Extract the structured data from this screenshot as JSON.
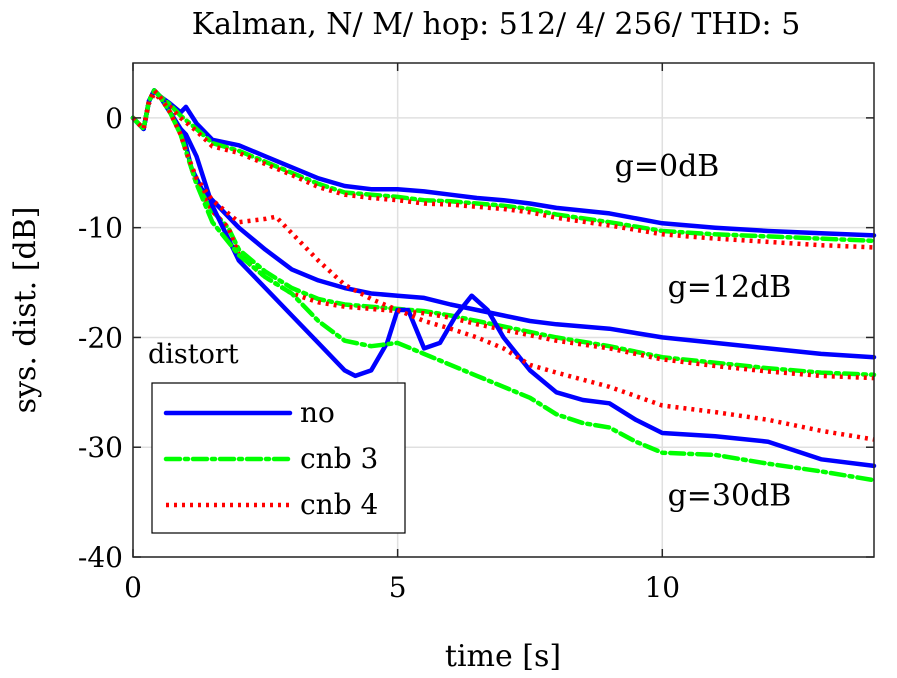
{
  "chart_data": {
    "type": "line",
    "title": "Kalman, N/ M/ hop: 512/ 4/ 256/ THD: 5",
    "xlabel": "time [s]",
    "ylabel": "sys. dist. [dB]",
    "xlim": [
      0,
      14
    ],
    "ylim": [
      -40,
      5
    ],
    "xticks": [
      0,
      5,
      10
    ],
    "yticks": [
      0,
      -10,
      -20,
      -30,
      -40
    ],
    "grid": true,
    "legend": {
      "title": "distort",
      "placement": "lower-left",
      "entries": [
        {
          "label": "no",
          "color": "#0000ff",
          "style": "solid"
        },
        {
          "label": "cnb 3",
          "color": "#00ff00",
          "style": "dashdot"
        },
        {
          "label": "cnb 4",
          "color": "#ff0000",
          "style": "dotted"
        }
      ]
    },
    "annotations": [
      {
        "text": "g=0dB",
        "x": 9.1,
        "y": -5.3
      },
      {
        "text": "g=12dB",
        "x": 10.1,
        "y": -16.3
      },
      {
        "text": "g=30dB",
        "x": 10.1,
        "y": -35.3
      }
    ],
    "series": [
      {
        "name": "no",
        "group": "g=0dB",
        "color": "#0000ff",
        "style": "solid",
        "x": [
          0,
          0.2,
          0.3,
          0.4,
          0.5,
          0.7,
          0.9,
          1.0,
          1.2,
          1.5,
          2,
          2.5,
          3,
          3.5,
          4,
          4.5,
          5,
          5.5,
          6,
          6.5,
          7,
          7.5,
          8,
          9,
          10,
          11,
          12,
          13,
          14
        ],
        "y": [
          0,
          -1,
          1.5,
          2.5,
          2,
          1.3,
          0.5,
          1,
          -0.5,
          -2,
          -2.5,
          -3.5,
          -4.5,
          -5.5,
          -6.2,
          -6.5,
          -6.5,
          -6.7,
          -7,
          -7.3,
          -7.5,
          -7.8,
          -8.2,
          -8.7,
          -9.6,
          -10,
          -10.3,
          -10.5,
          -10.7
        ]
      },
      {
        "name": "cnb 3",
        "group": "g=0dB",
        "color": "#00ff00",
        "style": "dashdot",
        "x": [
          0,
          0.2,
          0.3,
          0.4,
          0.5,
          0.7,
          0.9,
          1.2,
          1.5,
          2,
          2.5,
          3,
          3.5,
          4,
          4.5,
          5,
          5.5,
          6,
          6.5,
          7,
          7.5,
          8,
          9,
          10,
          11,
          12,
          13,
          14
        ],
        "y": [
          0,
          -1,
          1.5,
          2.5,
          2,
          1.2,
          0.2,
          -1,
          -2.3,
          -3,
          -4,
          -5,
          -6,
          -6.8,
          -7,
          -7.2,
          -7.5,
          -7.6,
          -7.8,
          -8,
          -8.3,
          -8.8,
          -9.5,
          -10.3,
          -10.6,
          -10.8,
          -11,
          -11.2
        ]
      },
      {
        "name": "cnb 4",
        "group": "g=0dB",
        "color": "#ff0000",
        "style": "dotted",
        "x": [
          0,
          0.2,
          0.3,
          0.4,
          0.5,
          0.7,
          0.9,
          1.2,
          1.5,
          2,
          2.5,
          3,
          3.5,
          4,
          4.5,
          5,
          5.5,
          6,
          6.5,
          7,
          7.5,
          8,
          9,
          10,
          11,
          12,
          13,
          14
        ],
        "y": [
          0,
          -1,
          1.3,
          2.2,
          1.8,
          1,
          0,
          -1.2,
          -2.6,
          -3.2,
          -4.2,
          -5.2,
          -6.3,
          -7,
          -7.3,
          -7.5,
          -7.8,
          -7.9,
          -8.1,
          -8.3,
          -8.6,
          -9.1,
          -9.8,
          -10.6,
          -11,
          -11.3,
          -11.6,
          -11.8
        ]
      },
      {
        "name": "no",
        "group": "g=12dB",
        "color": "#0000ff",
        "style": "solid",
        "x": [
          0,
          0.2,
          0.3,
          0.4,
          0.5,
          0.7,
          0.9,
          1.0,
          1.1,
          1.3,
          1.5,
          1.7,
          2,
          2.5,
          3,
          3.5,
          4,
          4.5,
          5,
          5.5,
          6,
          6.5,
          7,
          7.5,
          8,
          9,
          10,
          11,
          12,
          13,
          14
        ],
        "y": [
          0,
          -1,
          1.5,
          2.5,
          2,
          0.5,
          -1,
          -2.5,
          -4.5,
          -6.5,
          -7.5,
          -8.5,
          -10,
          -12,
          -13.8,
          -14.8,
          -15.5,
          -16,
          -16.2,
          -16.4,
          -17,
          -17.5,
          -18,
          -18.5,
          -18.8,
          -19.2,
          -20,
          -20.5,
          -21,
          -21.5,
          -21.8
        ]
      },
      {
        "name": "cnb 3",
        "group": "g=12dB",
        "color": "#00ff00",
        "style": "dashdot",
        "x": [
          0,
          0.2,
          0.3,
          0.4,
          0.5,
          0.7,
          0.9,
          1.0,
          1.2,
          1.5,
          1.8,
          2,
          2.5,
          3,
          3.5,
          4,
          4.5,
          5,
          5.5,
          6,
          6.5,
          7,
          7.5,
          8,
          9,
          10,
          11,
          12,
          13,
          14
        ],
        "y": [
          0,
          -1,
          1.5,
          2.5,
          2,
          0.5,
          -1.5,
          -3,
          -6,
          -8.5,
          -10,
          -12,
          -14,
          -15.5,
          -16.5,
          -17,
          -17.2,
          -17.4,
          -17.6,
          -18,
          -18.5,
          -19,
          -19.5,
          -20,
          -20.8,
          -21.8,
          -22.3,
          -22.8,
          -23.2,
          -23.4
        ]
      },
      {
        "name": "cnb 4",
        "group": "g=12dB",
        "color": "#ff0000",
        "style": "dotted",
        "x": [
          0,
          0.2,
          0.3,
          0.4,
          0.5,
          0.7,
          0.9,
          1.0,
          1.2,
          1.5,
          1.8,
          2,
          2.5,
          3,
          3.5,
          4,
          4.5,
          5,
          5.5,
          6,
          6.5,
          7,
          7.5,
          8,
          9,
          10,
          11,
          12,
          13,
          14
        ],
        "y": [
          0,
          -1,
          1.5,
          2.5,
          2,
          0.5,
          -1.5,
          -3,
          -6,
          -8.5,
          -10,
          -12.5,
          -14.5,
          -16,
          -16.8,
          -17.2,
          -17.4,
          -17.6,
          -17.8,
          -18.2,
          -18.8,
          -19.3,
          -19.8,
          -20.3,
          -21,
          -22,
          -22.6,
          -23.1,
          -23.5,
          -23.7
        ]
      },
      {
        "name": "no",
        "group": "g=30dB",
        "color": "#0000ff",
        "style": "solid",
        "x": [
          0,
          0.2,
          0.3,
          0.4,
          0.5,
          0.7,
          0.9,
          1.0,
          1.2,
          1.5,
          2,
          2.5,
          3,
          3.5,
          4,
          4.2,
          4.5,
          4.8,
          5,
          5.2,
          5.5,
          5.8,
          6.1,
          6.4,
          6.7,
          7,
          7.5,
          8,
          8.5,
          9,
          9.5,
          10,
          11,
          12,
          12.5,
          13,
          14
        ],
        "y": [
          0,
          -1,
          1.5,
          2.5,
          2,
          0.5,
          -1,
          -1.5,
          -3.5,
          -8,
          -13,
          -15.5,
          -18,
          -20.5,
          -23,
          -23.5,
          -23,
          -20.5,
          -17.5,
          -17.5,
          -21,
          -20.5,
          -18,
          -16.2,
          -17.5,
          -20,
          -23,
          -25,
          -25.7,
          -26,
          -27.5,
          -28.7,
          -29,
          -29.5,
          -30.3,
          -31.1,
          -31.7
        ]
      },
      {
        "name": "cnb 3",
        "group": "g=30dB",
        "color": "#00ff00",
        "style": "dashdot",
        "x": [
          0,
          0.2,
          0.3,
          0.4,
          0.5,
          0.7,
          0.9,
          1.0,
          1.2,
          1.5,
          2,
          2.5,
          3,
          3.5,
          4,
          4.5,
          5,
          5.5,
          6,
          6.5,
          7,
          7.5,
          8,
          8.5,
          9,
          9.5,
          10,
          11,
          12,
          13,
          14
        ],
        "y": [
          0,
          -1,
          1.5,
          2.5,
          2,
          0.5,
          -1.5,
          -3,
          -6,
          -9.5,
          -12.5,
          -14.5,
          -16,
          -18.5,
          -20.3,
          -20.8,
          -20.5,
          -21.5,
          -22.5,
          -23.5,
          -24.5,
          -25.5,
          -27,
          -27.8,
          -28.2,
          -29.5,
          -30.5,
          -30.7,
          -31.5,
          -32.2,
          -33
        ]
      },
      {
        "name": "cnb 4",
        "group": "g=30dB",
        "color": "#ff0000",
        "style": "dotted",
        "x": [
          0,
          0.2,
          0.3,
          0.4,
          0.5,
          0.7,
          0.9,
          1.0,
          1.2,
          1.5,
          2,
          2.5,
          2.7,
          3,
          3.5,
          4,
          4.5,
          5,
          5.5,
          6,
          6.5,
          7,
          7.5,
          8,
          9,
          10,
          11,
          12,
          13,
          14
        ],
        "y": [
          0,
          -1,
          1.5,
          2.5,
          2,
          0.5,
          -1.5,
          -3,
          -5.5,
          -7.5,
          -9.5,
          -9.2,
          -9,
          -10.5,
          -13,
          -15.2,
          -16.5,
          -17.5,
          -18.5,
          -19.2,
          -20,
          -21,
          -22.5,
          -23.2,
          -24.5,
          -26.2,
          -26.8,
          -27.5,
          -28.5,
          -29.3
        ]
      }
    ]
  }
}
